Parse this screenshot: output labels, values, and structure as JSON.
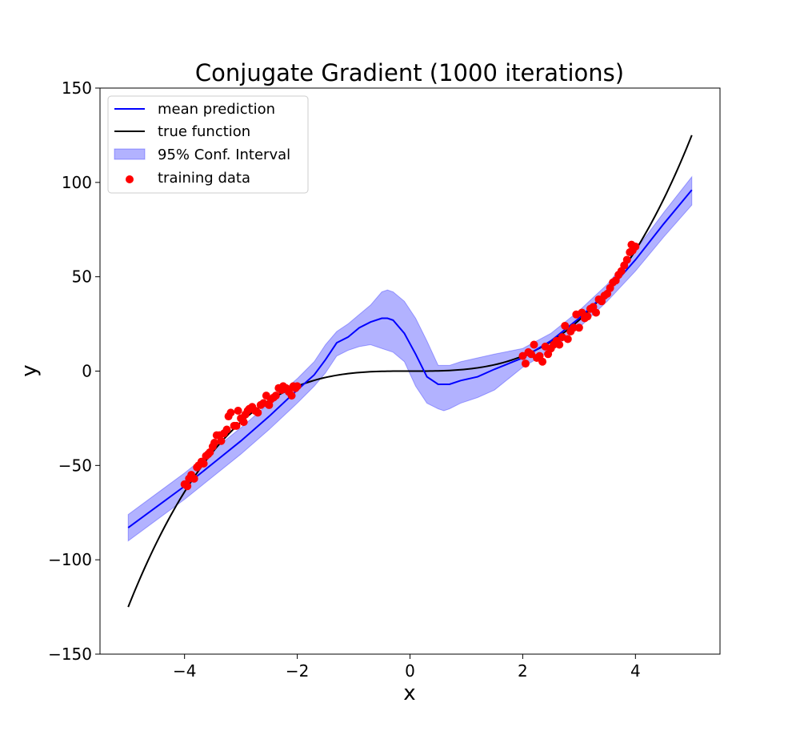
{
  "chart_data": {
    "type": "line",
    "title": "Conjugate Gradient (1000 iterations)",
    "xlabel": "x",
    "ylabel": "y",
    "xlim": [
      -5.5,
      5.5
    ],
    "ylim": [
      -150,
      150
    ],
    "xticks": [
      -4,
      -2,
      0,
      2,
      4
    ],
    "xtick_labels": [
      "−4",
      "−2",
      "0",
      "2",
      "4"
    ],
    "yticks": [
      -150,
      -100,
      -50,
      0,
      50,
      100,
      150
    ],
    "ytick_labels": [
      "−150",
      "−100",
      "−50",
      "0",
      "50",
      "100",
      "150"
    ],
    "grid": false,
    "legend_position": "top-left",
    "legend": [
      {
        "label": "mean prediction",
        "kind": "line",
        "color": "#0000ff"
      },
      {
        "label": "true function",
        "kind": "line",
        "color": "#000000"
      },
      {
        "label": "95% Conf. Interval",
        "kind": "band",
        "color": "#0000ff"
      },
      {
        "label": "training data",
        "kind": "marker",
        "color": "#ff0000"
      }
    ],
    "true_function": {
      "name": "true function",
      "color": "#000000",
      "formula": "x^3",
      "x_range": [
        -5,
        5
      ]
    },
    "mean_prediction": {
      "name": "mean prediction",
      "color": "#0000ff",
      "x": [
        -5,
        -4.5,
        -4,
        -3.5,
        -3,
        -2.5,
        -2,
        -1.7,
        -1.5,
        -1.3,
        -1.1,
        -0.9,
        -0.7,
        -0.5,
        -0.4,
        -0.3,
        -0.1,
        0.1,
        0.3,
        0.5,
        0.6,
        0.7,
        0.9,
        1.2,
        1.5,
        2,
        2.5,
        3,
        3.5,
        4,
        4.5,
        5
      ],
      "y": [
        -83,
        -72,
        -61,
        -49,
        -37,
        -24,
        -10,
        -2,
        6,
        15,
        18,
        23,
        26,
        28,
        28,
        27,
        20,
        9,
        -3,
        -7,
        -7,
        -7,
        -5,
        -3,
        1,
        7,
        16,
        28,
        42,
        59,
        78,
        96
      ]
    },
    "confidence_interval": {
      "name": "95% Conf. Interval",
      "color": "#0000ff",
      "opacity": 0.3,
      "x": [
        -5,
        -4.5,
        -4,
        -3.5,
        -3,
        -2.5,
        -2,
        -1.7,
        -1.5,
        -1.3,
        -1.1,
        -0.9,
        -0.7,
        -0.5,
        -0.4,
        -0.3,
        -0.1,
        0.1,
        0.3,
        0.5,
        0.6,
        0.7,
        0.9,
        1.2,
        1.5,
        2,
        2.5,
        3,
        3.5,
        4,
        4.5,
        5
      ],
      "upper": [
        -76,
        -65,
        -54,
        -42,
        -30,
        -17,
        -4,
        5,
        14,
        21,
        25,
        30,
        35,
        42,
        43,
        42,
        37,
        28,
        16,
        3,
        3,
        3,
        5,
        7,
        9,
        12,
        20,
        32,
        46,
        64,
        84,
        103
      ],
      "lower": [
        -90,
        -79,
        -68,
        -56,
        -44,
        -31,
        -17,
        -8,
        -1,
        8,
        11,
        13,
        14,
        12,
        11,
        10,
        5,
        -8,
        -17,
        -20,
        -21,
        -20,
        -17,
        -14,
        -10,
        2,
        11,
        23,
        37,
        53,
        71,
        88
      ]
    },
    "training_data": {
      "name": "training data",
      "color": "#ff0000",
      "x": [
        -4.0,
        -3.95,
        -3.92,
        -3.88,
        -3.83,
        -3.78,
        -3.75,
        -3.7,
        -3.66,
        -3.62,
        -3.58,
        -3.55,
        -3.5,
        -3.47,
        -3.43,
        -3.38,
        -3.35,
        -3.3,
        -3.25,
        -3.22,
        -3.18,
        -3.12,
        -3.08,
        -3.05,
        -3.0,
        -2.95,
        -2.92,
        -2.88,
        -2.85,
        -2.8,
        -2.75,
        -2.7,
        -2.65,
        -2.6,
        -2.55,
        -2.5,
        -2.47,
        -2.42,
        -2.38,
        -2.33,
        -2.28,
        -2.25,
        -2.2,
        -2.15,
        -2.1,
        -2.07,
        -2.03,
        -2.0,
        2.0,
        2.05,
        2.1,
        2.15,
        2.2,
        2.25,
        2.3,
        2.35,
        2.4,
        2.45,
        2.5,
        2.55,
        2.6,
        2.65,
        2.7,
        2.75,
        2.8,
        2.85,
        2.9,
        2.95,
        3.0,
        3.05,
        3.1,
        3.15,
        3.2,
        3.25,
        3.3,
        3.35,
        3.4,
        3.45,
        3.5,
        3.55,
        3.6,
        3.65,
        3.7,
        3.75,
        3.8,
        3.85,
        3.9,
        3.93,
        3.95,
        4.0
      ],
      "y": [
        -60,
        -61,
        -57,
        -55,
        -57,
        -51,
        -50,
        -48,
        -49,
        -45,
        -44,
        -43,
        -40,
        -38,
        -34,
        -34,
        -37,
        -33,
        -31,
        -24,
        -22,
        -29,
        -29,
        -21,
        -25,
        -27,
        -23,
        -21,
        -20,
        -19,
        -21,
        -22,
        -18,
        -17,
        -13,
        -18,
        -15,
        -14,
        -13,
        -9,
        -10,
        -8,
        -9,
        -11,
        -13,
        -8,
        -9,
        -8,
        8,
        4,
        10,
        9,
        14,
        7,
        8,
        5,
        13,
        9,
        12,
        14,
        16,
        14,
        18,
        24,
        17,
        21,
        23,
        30,
        23,
        31,
        28,
        29,
        33,
        34,
        31,
        38,
        37,
        40,
        41,
        44,
        47,
        48,
        51,
        53,
        56,
        59,
        63,
        67,
        64,
        66
      ]
    }
  }
}
